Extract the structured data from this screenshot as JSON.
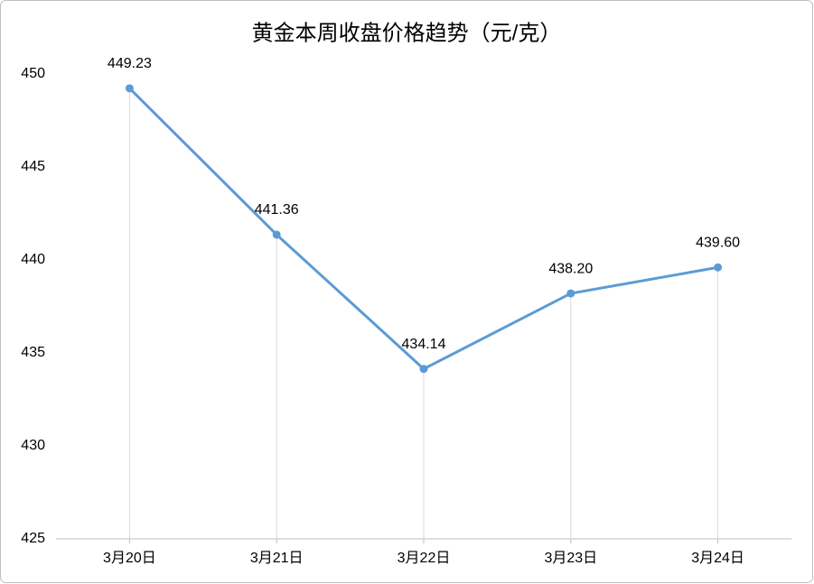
{
  "chart_data": {
    "type": "line",
    "title": "黄金本周收盘价格趋势（元/克）",
    "categories": [
      "3月20日",
      "3月21日",
      "3月22日",
      "3月23日",
      "3月24日"
    ],
    "values": [
      449.23,
      441.36,
      434.14,
      438.2,
      439.6
    ],
    "value_labels": [
      "449.23",
      "441.36",
      "434.14",
      "438.20",
      "439.60"
    ],
    "color": "#5b9bd5",
    "ylim": [
      425,
      450
    ],
    "yticks": [
      425,
      430,
      435,
      440,
      445,
      450
    ],
    "drop_lines": true
  }
}
